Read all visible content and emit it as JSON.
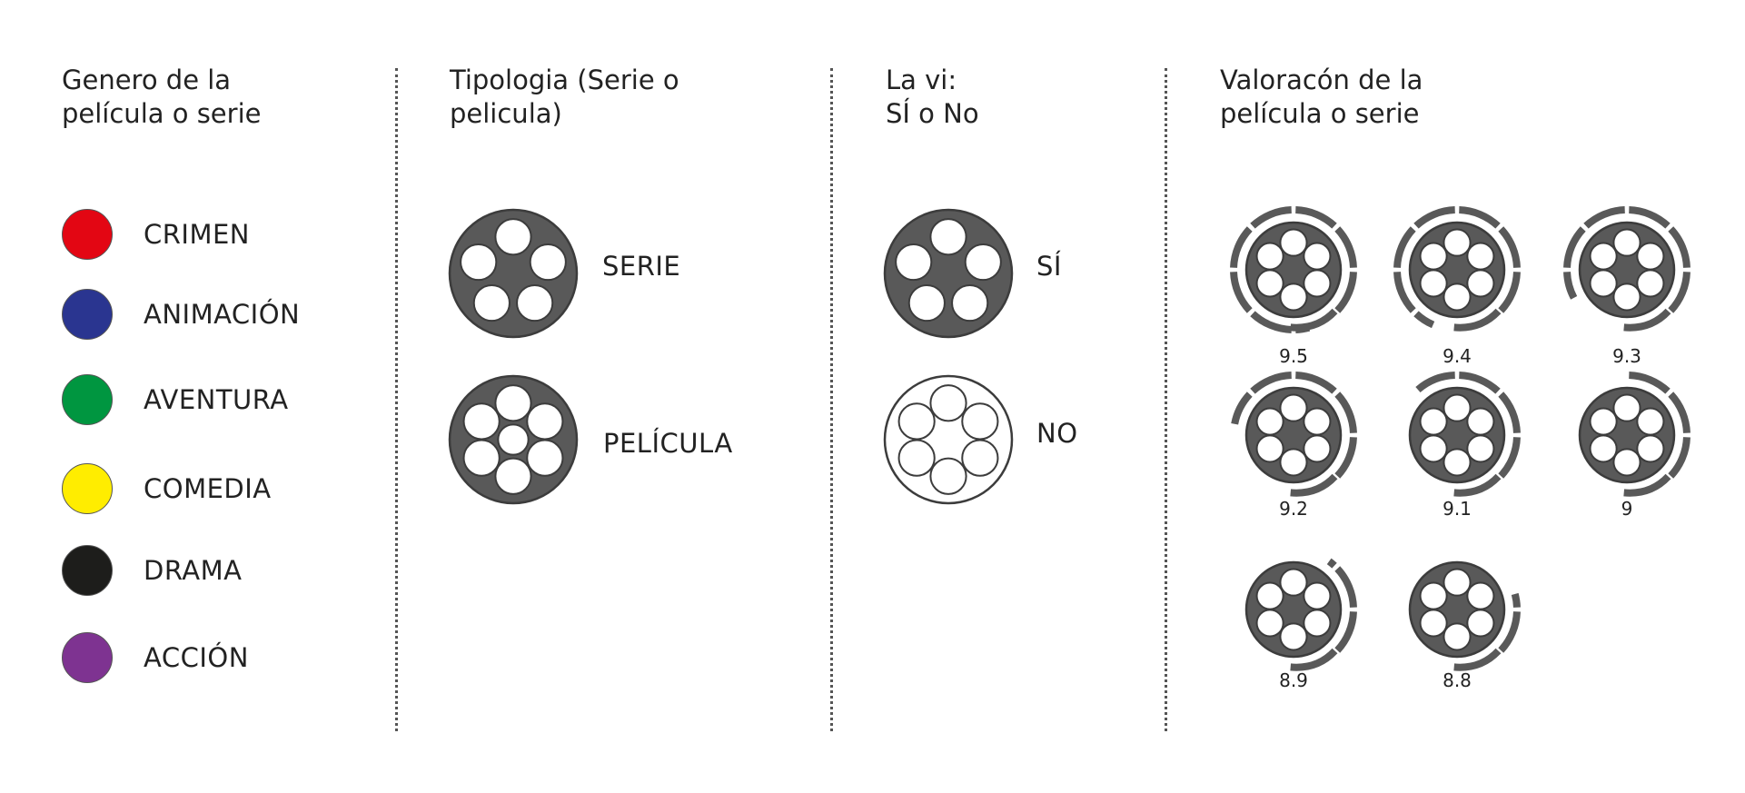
{
  "columns": {
    "genre": {
      "title_line1": "Genero de la",
      "title_line2": "película o serie"
    },
    "type": {
      "title_line1": "Tipologia (Serie o",
      "title_line2": "pelicula)"
    },
    "seen": {
      "title_line1": "La vi:",
      "title_line2": "SÍ o No"
    },
    "rating": {
      "title_line1": "Valoracón de la",
      "title_line2": "película o serie"
    }
  },
  "genres": [
    {
      "label": "CRIMEN",
      "color": "#e30613"
    },
    {
      "label": "ANIMACIÓN",
      "color": "#2a3590"
    },
    {
      "label": "AVENTURA",
      "color": "#009640"
    },
    {
      "label": "COMEDIA",
      "color": "#ffed00"
    },
    {
      "label": "DRAMA",
      "color": "#1d1d1b"
    },
    {
      "label": "ACCIÓN",
      "color": "#7e3391"
    }
  ],
  "types": [
    {
      "label": "SERIE",
      "icon": "film-reel-five-holes-icon"
    },
    {
      "label": "PELÍCULA",
      "icon": "film-reel-six-holes-icon"
    }
  ],
  "seen": [
    {
      "label": "SÍ",
      "icon": "film-reel-filled-icon"
    },
    {
      "label": "NO",
      "icon": "film-reel-outline-icon"
    }
  ],
  "ratings": [
    {
      "label": "9.5",
      "value": 9.5
    },
    {
      "label": "9.4",
      "value": 9.4
    },
    {
      "label": "9.3",
      "value": 9.3
    },
    {
      "label": "9.2",
      "value": 9.2
    },
    {
      "label": "9.1",
      "value": 9.1
    },
    {
      "label": "9",
      "value": 9.0
    },
    {
      "label": "8.9",
      "value": 8.9
    },
    {
      "label": "8.8",
      "value": 8.8
    }
  ],
  "colors": {
    "reel": "#595959",
    "reel_stroke": "#3c3c3c",
    "divider": "#555555"
  }
}
